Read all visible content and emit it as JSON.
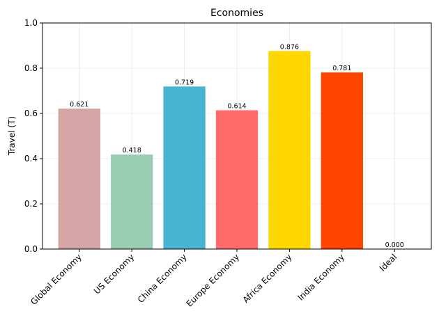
{
  "chart_data": {
    "type": "bar",
    "title": "Economies",
    "xlabel": "",
    "ylabel": "Travel (T)",
    "ylim": [
      0,
      1.0
    ],
    "yticks": [
      0.0,
      0.2,
      0.4,
      0.6,
      0.8,
      1.0
    ],
    "ytick_labels": [
      "0.0",
      "0.2",
      "0.4",
      "0.6",
      "0.8",
      "1.0"
    ],
    "grid": true,
    "categories": [
      "Global Economy",
      "US Economy",
      "China Economy",
      "Europe Economy",
      "Africa Economy",
      "India Economy",
      "Ideal"
    ],
    "values": [
      0.621,
      0.418,
      0.719,
      0.614,
      0.876,
      0.781,
      0.0
    ],
    "value_labels": [
      "0.621",
      "0.418",
      "0.719",
      "0.614",
      "0.876",
      "0.781",
      "0.000"
    ],
    "colors": [
      "#d4a5a5",
      "#98cdb4",
      "#46b5d1",
      "#ff6b6b",
      "#ffd700",
      "#ff4500",
      "#ffffff"
    ]
  }
}
